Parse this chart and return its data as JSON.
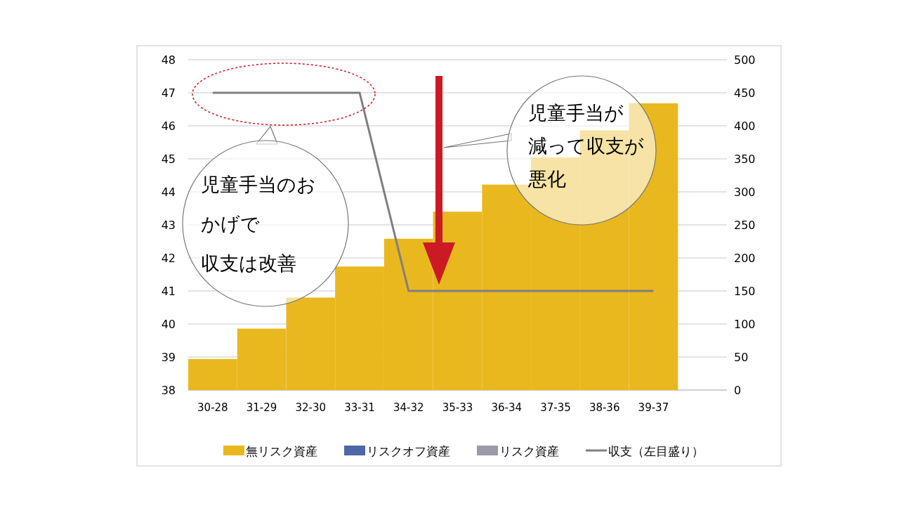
{
  "chart_data": {
    "type": "bar",
    "categories": [
      "30-28",
      "31-29",
      "32-30",
      "33-31",
      "34-32",
      "35-33",
      "36-34",
      "37-35",
      "38-36",
      "39-37",
      null
    ],
    "series": [
      {
        "name": "無リスク資産",
        "color": "#e9b81f",
        "axis": "y2",
        "values": [
          47,
          93,
          140,
          187,
          229,
          270,
          311,
          352,
          393,
          434,
          null
        ]
      },
      {
        "name": "リスクオフ資産",
        "color": "#4e67a8",
        "axis": "y2",
        "values": [
          null,
          null,
          null,
          null,
          null,
          null,
          null,
          null,
          null,
          null,
          null
        ]
      },
      {
        "name": "リスク資産",
        "color": "#9b9aaa",
        "axis": "y2",
        "values": [
          null,
          null,
          null,
          null,
          null,
          null,
          null,
          null,
          null,
          null,
          null
        ]
      },
      {
        "name": "収支（左目盛り）",
        "type": "line",
        "color": "#7f7f7f",
        "axis": "y",
        "values": [
          47,
          47,
          47,
          47,
          41,
          41,
          41,
          41,
          41,
          41,
          null
        ]
      }
    ],
    "ylim": [
      38,
      48
    ],
    "yticks": [
      38,
      39,
      40,
      41,
      42,
      43,
      44,
      45,
      46,
      47,
      48
    ],
    "y2lim": [
      0,
      500
    ],
    "y2ticks": [
      0,
      50,
      100,
      150,
      200,
      250,
      300,
      350,
      400,
      450,
      500
    ],
    "grid": "y",
    "legend": "bottom",
    "annotations": [
      "児童手当のおかげで収支は改善",
      "児童手当が減って収支が悪化"
    ]
  }
}
